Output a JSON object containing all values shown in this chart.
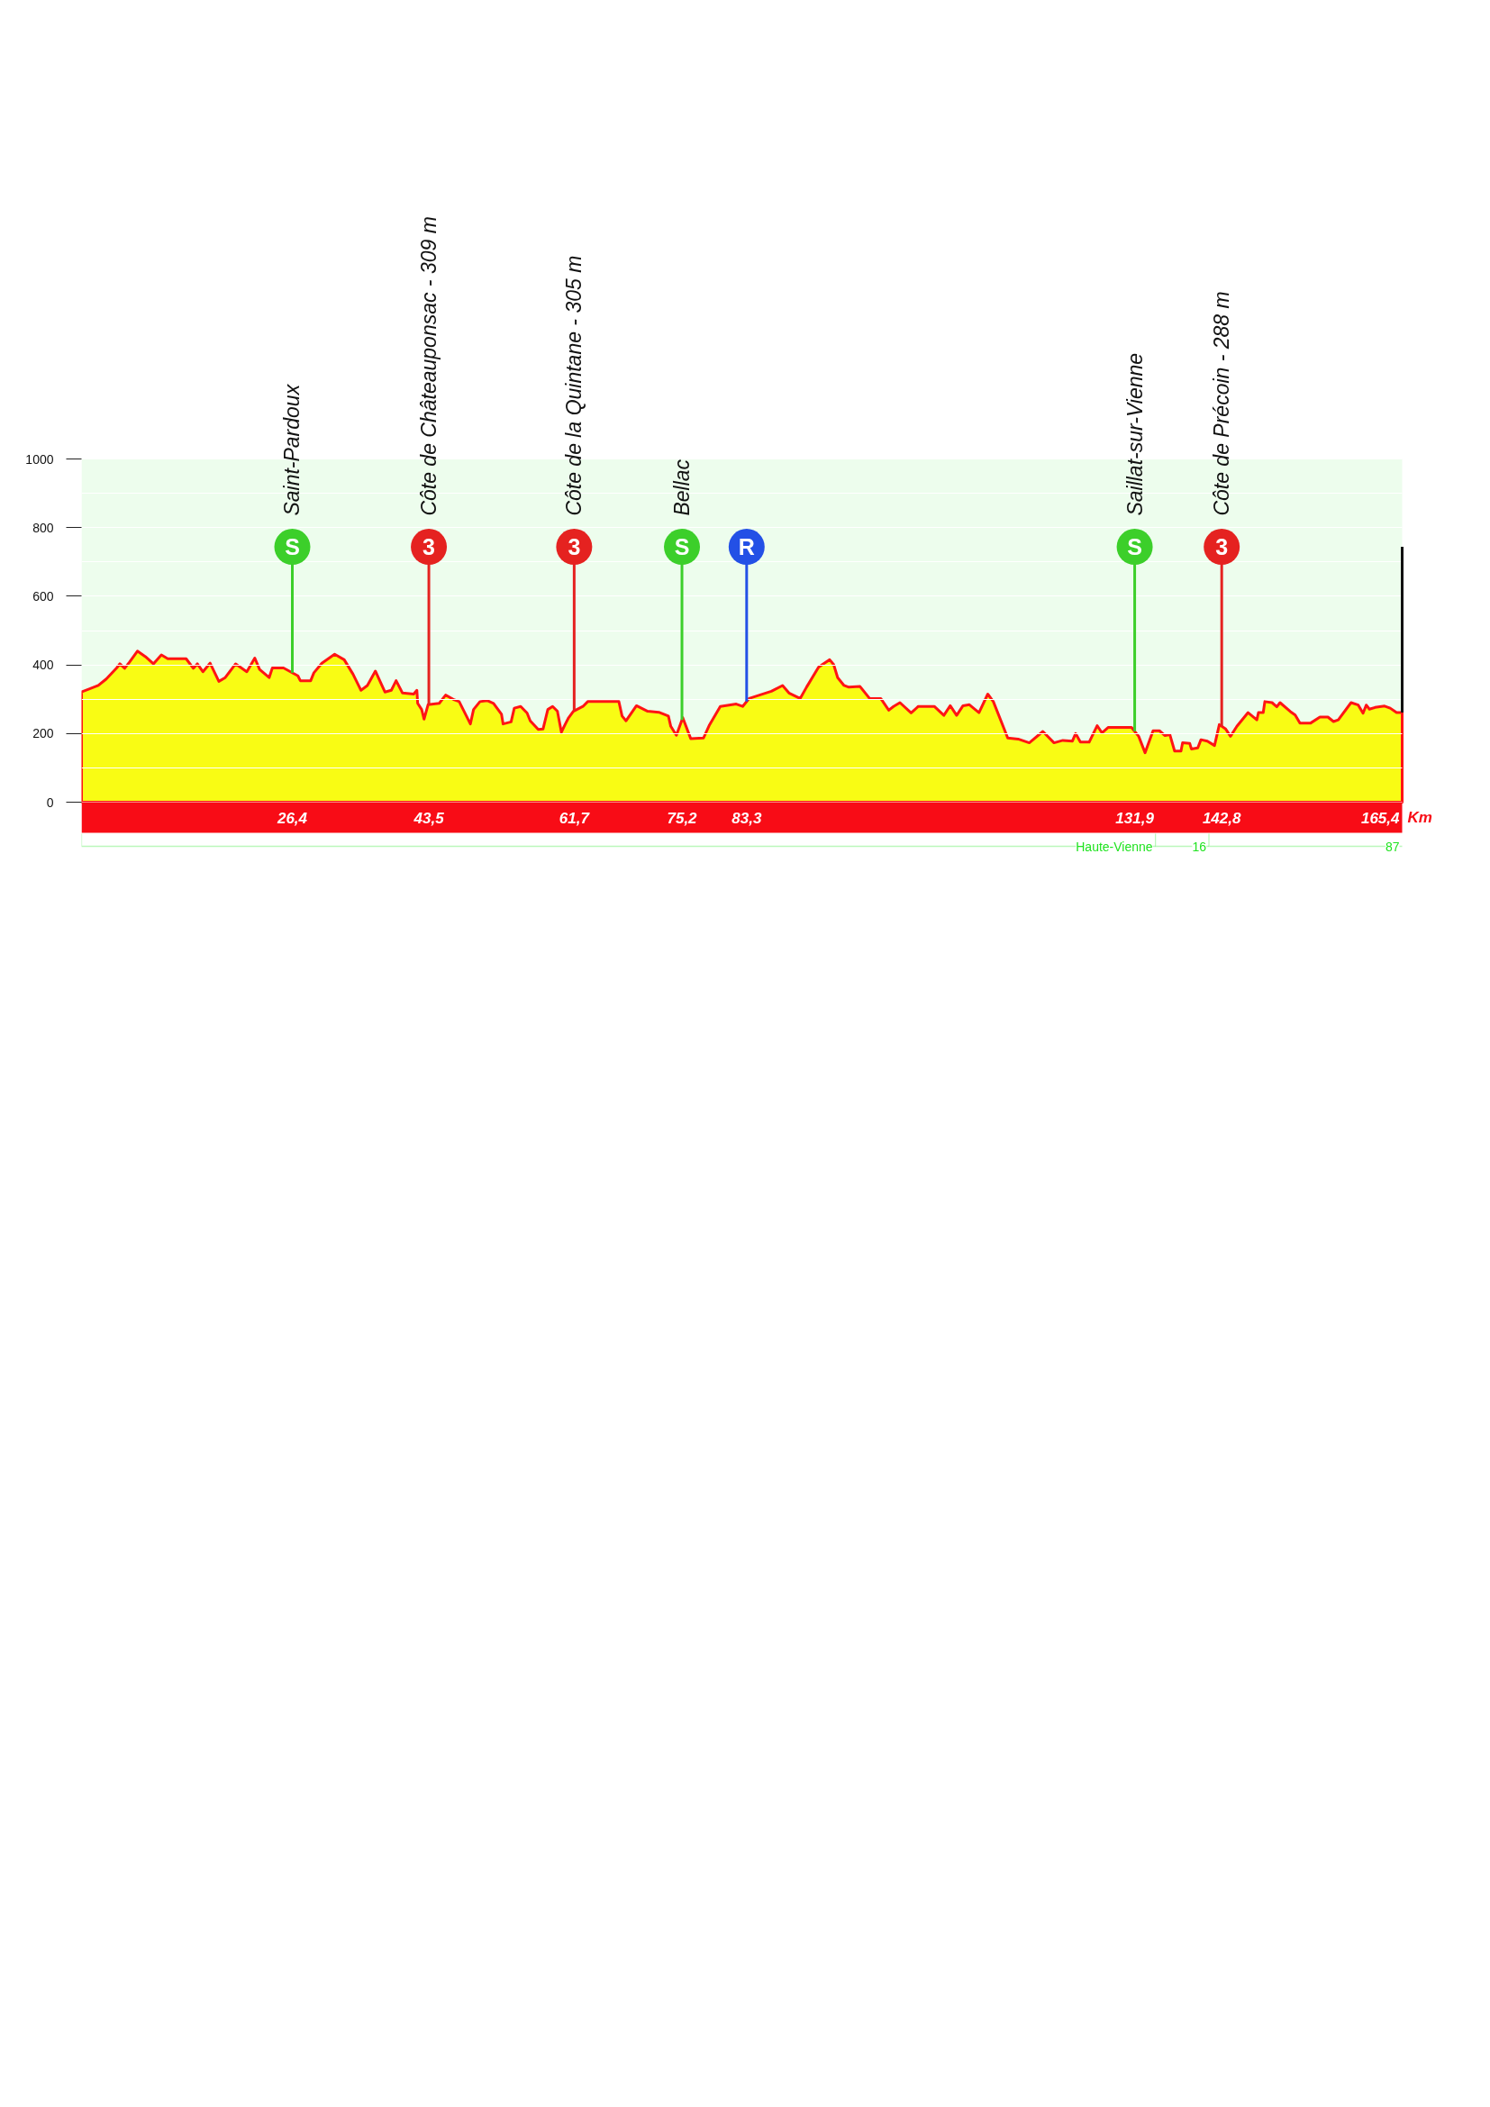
{
  "chart_data": {
    "type": "area",
    "xlabel": "Km",
    "x": [
      0,
      2.1,
      3.1,
      4.4,
      4.8,
      5.4,
      6.0,
      7.0,
      8.0,
      9.0,
      10.0,
      10.8,
      13.1,
      14.0,
      14.5,
      15.2,
      16.1,
      17.2,
      18.0,
      19.3,
      20.7,
      21.7,
      22.3,
      23.5,
      23.9,
      25.3,
      27.1,
      27.4,
      28.7,
      29.1,
      30.1,
      31.7,
      32.9,
      34.0,
      35.0,
      35.8,
      36.8,
      38.0,
      38.8,
      39.4,
      40.2,
      41.6,
      42.0,
      42.1,
      42.6,
      42.9,
      43.4,
      44.8,
      45.6,
      46.7,
      47.3,
      48.7,
      49.1,
      49.9,
      50.8,
      51.6,
      52.6,
      52.8,
      53.8,
      54.2,
      55.0,
      55.8,
      56.2,
      57.2,
      57.8,
      58.4,
      59.0,
      59.6,
      60.1,
      60.6,
      61.0,
      61.6,
      62.8,
      63.4,
      67.3,
      67.7,
      68.2,
      69.5,
      70.9,
      72.3,
      73.5,
      73.8,
      74.5,
      75.3,
      76.3,
      77.9,
      78.6,
      80.0,
      82.0,
      82.8,
      83.6,
      86.4,
      87.8,
      88.6,
      90.0,
      90.8,
      92.3,
      92.9,
      93.7,
      94.2,
      94.7,
      95.5,
      96.1,
      97.5,
      98.7,
      100.1,
      101.1,
      101.7,
      102.5,
      103.9,
      104.8,
      106.8,
      108.0,
      108.8,
      109.6,
      110.4,
      111.2,
      112.4,
      113.5,
      114.2,
      116.0,
      117.3,
      118.7,
      120.4,
      121.8,
      122.9,
      124.1,
      124.5,
      125.1,
      126.2,
      127.2,
      127.8,
      128.6,
      131.5,
      132.4,
      133.2,
      134.2,
      135.0,
      135.7,
      136.3,
      136.9,
      137.7,
      137.9,
      138.8,
      139.0,
      139.8,
      140.2,
      141.0,
      141.9,
      142.5,
      143.3,
      143.9,
      144.7,
      146.1,
      147.2,
      147.4,
      148.0,
      148.2,
      149.1,
      149.7,
      150.1,
      151.4,
      152.0,
      152.6,
      153.9,
      155.1,
      156.1,
      156.8,
      157.4,
      159.0,
      159.9,
      160.5,
      160.9,
      161.3,
      162.0,
      163.2,
      163.9,
      164.7,
      165.4
    ],
    "series": [
      {
        "color": "#f9fc14",
        "values": [
          321,
          340,
          359,
          391,
          403,
          390,
          408,
          440,
          424,
          403,
          429,
          418,
          418,
          390,
          403,
          380,
          405,
          352,
          363,
          403,
          380,
          420,
          387,
          363,
          391,
          391,
          368,
          354,
          354,
          377,
          405,
          431,
          415,
          373,
          326,
          340,
          382,
          321,
          326,
          354,
          318,
          315,
          326,
          288,
          270,
          242,
          284,
          288,
          312,
          298,
          293,
          228,
          270,
          293,
          296,
          288,
          256,
          228,
          234,
          274,
          279,
          260,
          237,
          212,
          213,
          270,
          279,
          265,
          204,
          228,
          246,
          265,
          279,
          293,
          293,
          251,
          237,
          281,
          265,
          262,
          251,
          221,
          195,
          246,
          185,
          187,
          223,
          279,
          286,
          279,
          302,
          323,
          340,
          318,
          302,
          335,
          393,
          403,
          415,
          401,
          363,
          340,
          335,
          337,
          302,
          302,
          268,
          279,
          290,
          260,
          279,
          279,
          253,
          281,
          253,
          281,
          284,
          261,
          315,
          293,
          187,
          184,
          173,
          206,
          173,
          180,
          178,
          200,
          175,
          175,
          223,
          202,
          218,
          218,
          192,
          144,
          208,
          208,
          194,
          197,
          149,
          149,
          173,
          171,
          155,
          158,
          182,
          178,
          165,
          226,
          213,
          192,
          221,
          261,
          240,
          261,
          261,
          293,
          290,
          278,
          290,
          264,
          254,
          230,
          230,
          248,
          248,
          235,
          240,
          290,
          283,
          259,
          283,
          271,
          276,
          280,
          274,
          261,
          261
        ]
      }
    ],
    "xlim": [
      0,
      165.4
    ],
    "xticks": [
      {
        "value": 26.4,
        "label": "26,4"
      },
      {
        "value": 43.5,
        "label": "43,5"
      },
      {
        "value": 61.7,
        "label": "61,7"
      },
      {
        "value": 75.2,
        "label": "75,2"
      },
      {
        "value": 83.3,
        "label": "83,3"
      },
      {
        "value": 131.9,
        "label": "131,9"
      },
      {
        "value": 142.8,
        "label": "142,8"
      },
      {
        "value": 165.4,
        "label": "165,4"
      }
    ],
    "ylim": [
      0,
      1000
    ],
    "yticks": [
      0,
      200,
      400,
      600,
      800,
      1000
    ],
    "grid": "y",
    "ref_lines": [
      {
        "axis": "x",
        "value": 26.4,
        "color": "#3ccf2a"
      },
      {
        "axis": "x",
        "value": 43.5,
        "color": "#e52220"
      },
      {
        "axis": "x",
        "value": 61.7,
        "color": "#e52220"
      },
      {
        "axis": "x",
        "value": 75.2,
        "color": "#3ccf2a"
      },
      {
        "axis": "x",
        "value": 83.3,
        "color": "#2350e6"
      },
      {
        "axis": "x",
        "value": 131.9,
        "color": "#3ccf2a"
      },
      {
        "axis": "x",
        "value": 142.8,
        "color": "#e52220"
      },
      {
        "axis": "x",
        "value": 165.4,
        "color": "#111111"
      }
    ],
    "bands": [
      {
        "axis": "x",
        "from": 0,
        "to": 134.5,
        "label": "Haute-Vienne",
        "color": "#1fe31f"
      },
      {
        "axis": "x",
        "from": 134.5,
        "to": 141.2,
        "label": "16",
        "color": "#1fe31f"
      },
      {
        "axis": "x",
        "from": 141.2,
        "to": 165.4,
        "label": "87",
        "color": "#1fe31f"
      }
    ],
    "annotations": [
      {
        "text": "Saint-Pardoux",
        "x": 26.4,
        "y": 690
      },
      {
        "text": "Côte de Châteauponsac - 309 m",
        "x": 43.5,
        "y": 690
      },
      {
        "text": "Côte de la Quintane - 305 m",
        "x": 61.7,
        "y": 690
      },
      {
        "text": "Bellac",
        "x": 75.2,
        "y": 690
      },
      {
        "text": "Saillat-sur-Vienne",
        "x": 131.9,
        "y": 690
      },
      {
        "text": "Côte de Précoin - 288 m",
        "x": 142.8,
        "y": 690
      },
      {
        "text": "S",
        "x": 26.4,
        "y": 744
      },
      {
        "text": "3",
        "x": 43.5,
        "y": 744
      },
      {
        "text": "3",
        "x": 61.7,
        "y": 744
      },
      {
        "text": "S",
        "x": 75.2,
        "y": 744
      },
      {
        "text": "R",
        "x": 83.3,
        "y": 744
      },
      {
        "text": "S",
        "x": 131.9,
        "y": 744
      },
      {
        "text": "3",
        "x": 142.8,
        "y": 744
      }
    ]
  }
}
